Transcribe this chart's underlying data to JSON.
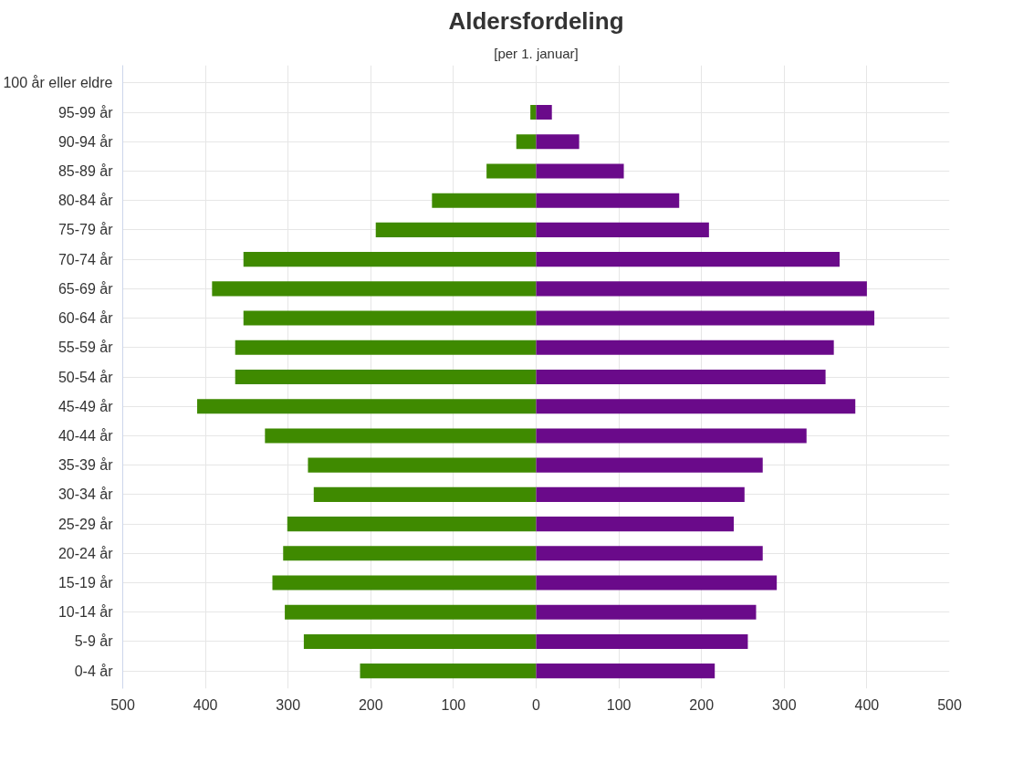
{
  "chart_data": {
    "type": "bar",
    "orientation": "horizontal",
    "title": "Aldersfordeling",
    "subtitle": "[per 1. januar]",
    "categories": [
      "100 år eller eldre",
      "95-99 år",
      "90-94 år",
      "85-89 år",
      "80-84 år",
      "75-79 år",
      "70-74 år",
      "65-69 år",
      "60-64 år",
      "55-59 år",
      "50-54 år",
      "45-49 år",
      "40-44 år",
      "35-39 år",
      "30-34 år",
      "25-29 år",
      "20-24 år",
      "15-19 år",
      "10-14 år",
      "5-9 år",
      "0-4 år"
    ],
    "series": [
      {
        "color": "#3f8a00",
        "values": [
          0,
          -7,
          -24,
          -60,
          -126,
          -194,
          -354,
          -392,
          -354,
          -364,
          -364,
          -410,
          -328,
          -276,
          -269,
          -301,
          -306,
          -319,
          -304,
          -281,
          -213
        ]
      },
      {
        "color": "#6a0a8a",
        "values": [
          0,
          19,
          52,
          106,
          173,
          209,
          367,
          400,
          409,
          360,
          350,
          386,
          327,
          274,
          252,
          239,
          274,
          291,
          266,
          256,
          216
        ]
      }
    ],
    "xlim": [
      -500,
      500
    ],
    "xticks": [
      {
        "value": -500,
        "label": "500"
      },
      {
        "value": -400,
        "label": "400"
      },
      {
        "value": -300,
        "label": "300"
      },
      {
        "value": -200,
        "label": "200"
      },
      {
        "value": -100,
        "label": "100"
      },
      0,
      100,
      200,
      300,
      400,
      500
    ],
    "grid": true,
    "stacked": true
  }
}
